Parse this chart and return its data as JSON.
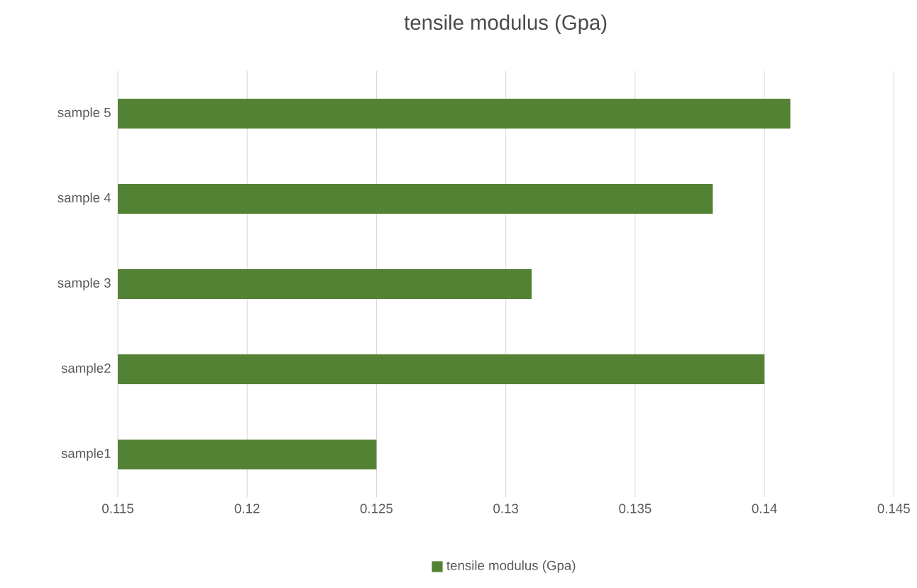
{
  "chart_data": {
    "type": "bar",
    "orientation": "horizontal",
    "title": "tensile modulus (Gpa)",
    "categories": [
      "sample 5",
      "sample 4",
      "sample 3",
      "sample2",
      "sample1"
    ],
    "series": [
      {
        "name": "tensile modulus (Gpa)",
        "color": "#548235",
        "values": [
          0.141,
          0.138,
          0.131,
          0.14,
          0.125
        ]
      }
    ],
    "xlim": [
      0.115,
      0.145
    ],
    "xticks": [
      0.115,
      0.12,
      0.125,
      0.13,
      0.135,
      0.14,
      0.145
    ],
    "grid": "x",
    "legend": "bottom"
  }
}
